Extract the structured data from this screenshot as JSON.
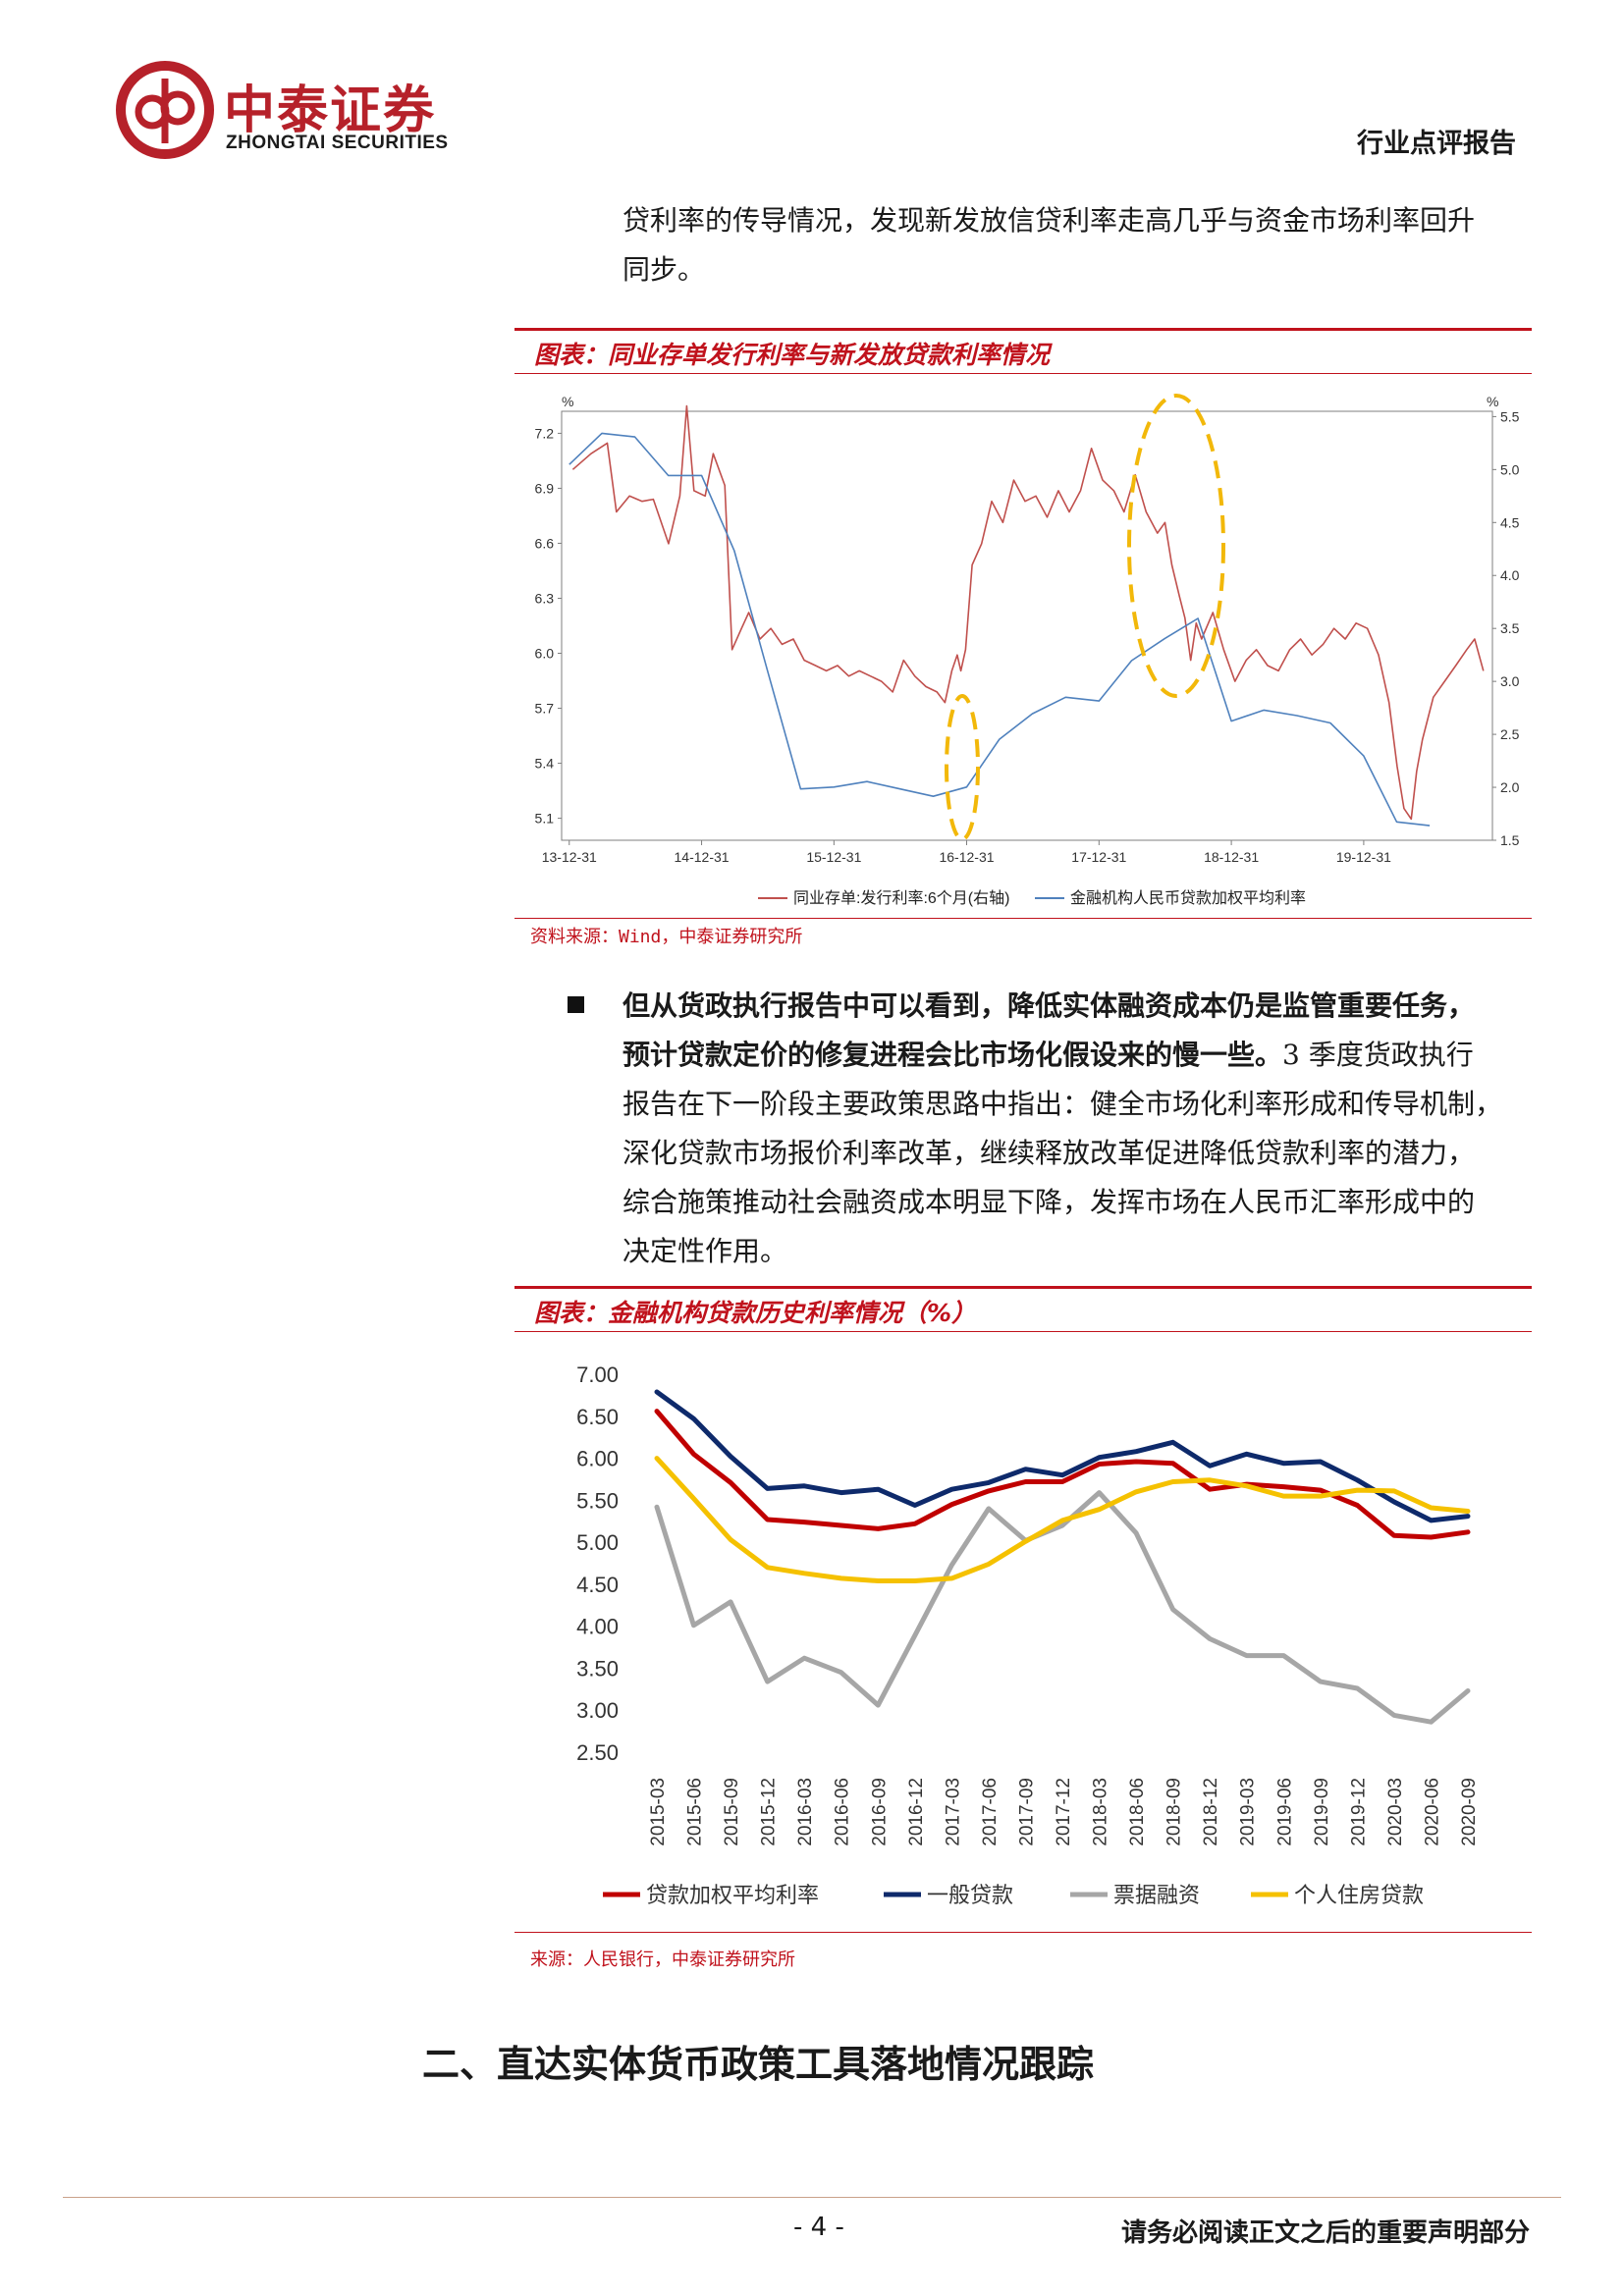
{
  "header": {
    "logo_cn": "中泰证券",
    "logo_en": "ZHONGTAI SECURITIES",
    "report_type": "行业点评报告"
  },
  "para1": {
    "line1": "贷利率的传导情况，发现新发放信贷利率走高几乎与资金市场利率回升",
    "line2": "同步。"
  },
  "figure1": {
    "title": "图表：同业存单发行利率与新发放贷款利率情况",
    "source": "资料来源：Wind，中泰证券研究所",
    "chart_data": {
      "type": "line",
      "left_axis_unit": "%",
      "right_axis_unit": "%",
      "x_ticks": [
        "13-12-31",
        "14-12-31",
        "15-12-31",
        "16-12-31",
        "17-12-31",
        "18-12-31",
        "19-12-31"
      ],
      "left_ticks": [
        "7.2",
        "6.9",
        "6.6",
        "6.3",
        "6.0",
        "5.7",
        "5.4",
        "5.1"
      ],
      "right_ticks": [
        "5.5",
        "5.0",
        "4.5",
        "4.0",
        "3.5",
        "3.0",
        "2.5",
        "2.0",
        "1.5"
      ],
      "ylim_left": [
        4.98,
        7.32
      ],
      "ylim_right": [
        1.5,
        5.55
      ],
      "series": [
        {
          "name": "同业存单:发行利率:6个月(右轴)",
          "axis": "right",
          "color": "#c0504d",
          "x": [
            "2014-01-10",
            "2014-03-01",
            "2014-04-15",
            "2014-05-10",
            "2014-06-15",
            "2014-07-20",
            "2014-08-20",
            "2014-10-01",
            "2014-11-01",
            "2014-11-20",
            "2014-12-10",
            "2015-01-10",
            "2015-02-01",
            "2015-03-05",
            "2015-03-25",
            "2015-04-20",
            "2015-05-10",
            "2015-06-10",
            "2015-07-10",
            "2015-08-10",
            "2015-09-10",
            "2015-10-10",
            "2015-11-10",
            "2015-12-10",
            "2016-01-10",
            "2016-02-10",
            "2016-03-10",
            "2016-04-10",
            "2016-05-10",
            "2016-06-10",
            "2016-07-10",
            "2016-08-10",
            "2016-09-10",
            "2016-10-10",
            "2016-11-01",
            "2016-11-20",
            "2016-12-05",
            "2016-12-15",
            "2016-12-28",
            "2017-01-15",
            "2017-02-10",
            "2017-03-10",
            "2017-04-10",
            "2017-05-10",
            "2017-06-10",
            "2017-07-10",
            "2017-08-10",
            "2017-09-10",
            "2017-10-10",
            "2017-11-10",
            "2017-12-10",
            "2018-01-10",
            "2018-02-10",
            "2018-03-10",
            "2018-04-10",
            "2018-05-10",
            "2018-06-10",
            "2018-07-01",
            "2018-07-20",
            "2018-08-10",
            "2018-08-25",
            "2018-09-10",
            "2018-09-25",
            "2018-10-10",
            "2018-11-10",
            "2018-12-10",
            "2019-01-10",
            "2019-02-10",
            "2019-03-10",
            "2019-04-10",
            "2019-05-10",
            "2019-06-10",
            "2019-07-10",
            "2019-08-10",
            "2019-09-10",
            "2019-10-10",
            "2019-11-10",
            "2019-12-10",
            "2020-01-10",
            "2020-02-10",
            "2020-03-10",
            "2020-04-01",
            "2020-04-20",
            "2020-05-10",
            "2020-05-25",
            "2020-06-10",
            "2020-07-10",
            "2020-08-10",
            "2020-09-10",
            "2020-10-10",
            "2020-11-01",
            "2020-11-25"
          ],
          "values": [
            5.0,
            5.15,
            5.25,
            4.6,
            4.75,
            4.7,
            4.72,
            4.3,
            4.75,
            5.6,
            4.8,
            4.75,
            5.15,
            4.85,
            3.3,
            3.5,
            3.65,
            3.4,
            3.5,
            3.35,
            3.4,
            3.2,
            3.15,
            3.1,
            3.15,
            3.05,
            3.1,
            3.05,
            3.0,
            2.9,
            3.2,
            3.05,
            2.95,
            2.9,
            2.8,
            3.1,
            3.25,
            3.1,
            3.3,
            4.1,
            4.3,
            4.7,
            4.5,
            4.9,
            4.7,
            4.75,
            4.55,
            4.8,
            4.6,
            4.8,
            5.2,
            4.9,
            4.8,
            4.6,
            4.95,
            4.6,
            4.4,
            4.5,
            4.1,
            3.8,
            3.6,
            3.2,
            3.55,
            3.4,
            3.65,
            3.3,
            3.0,
            3.2,
            3.3,
            3.15,
            3.1,
            3.3,
            3.4,
            3.25,
            3.35,
            3.5,
            3.4,
            3.55,
            3.5,
            3.25,
            2.8,
            2.2,
            1.8,
            1.7,
            2.15,
            2.45,
            2.85,
            3.0,
            3.15,
            3.3,
            3.4,
            3.1
          ]
        },
        {
          "name": "金融机构人民币贷款加权平均利率",
          "axis": "left",
          "color": "#4f81bd",
          "x": [
            "2013-12-31",
            "2014-03-31",
            "2014-06-30",
            "2014-09-30",
            "2014-12-31",
            "2015-03-31",
            "2015-06-30",
            "2015-09-30",
            "2015-12-31",
            "2016-03-31",
            "2016-06-30",
            "2016-09-30",
            "2016-12-31",
            "2017-03-31",
            "2017-06-30",
            "2017-09-30",
            "2017-12-31",
            "2018-03-31",
            "2018-06-30",
            "2018-09-30",
            "2018-12-31",
            "2019-03-31",
            "2019-06-30",
            "2019-09-30",
            "2019-12-31",
            "2020-03-31",
            "2020-06-30"
          ],
          "values": [
            7.03,
            7.2,
            7.18,
            6.97,
            6.97,
            6.56,
            5.91,
            5.26,
            5.27,
            5.3,
            5.26,
            5.22,
            5.27,
            5.53,
            5.67,
            5.76,
            5.74,
            5.96,
            6.08,
            6.19,
            5.63,
            5.69,
            5.66,
            5.62,
            5.44,
            5.08,
            5.06
          ]
        }
      ]
    }
  },
  "para2": {
    "bold_line1": "但从货政执行报告中可以看到，降低实体融资成本仍是监管重要任务，",
    "bold_line2_bold": "预计贷款定价的修复进程会比市场化假设来的慢一些。",
    "line2_rest": "3 季度货政执行",
    "line3": "报告在下一阶段主要政策思路中指出：健全市场化利率形成和传导机制，",
    "line4": "深化贷款市场报价利率改革，继续释放改革促进降低贷款利率的潜力，",
    "line5": "综合施策推动社会融资成本明显下降，发挥市场在人民币汇率形成中的",
    "line6": "决定性作用。"
  },
  "figure2": {
    "title": "图表：金融机构贷款历史利率情况（%）",
    "source": "来源：人民银行，中泰证券研究所",
    "chart_data": {
      "type": "line",
      "categories": [
        "2015-03",
        "2015-06",
        "2015-09",
        "2015-12",
        "2016-03",
        "2016-06",
        "2016-09",
        "2016-12",
        "2017-03",
        "2017-06",
        "2017-09",
        "2017-12",
        "2018-03",
        "2018-06",
        "2018-09",
        "2018-12",
        "2019-03",
        "2019-06",
        "2019-09",
        "2019-12",
        "2020-03",
        "2020-06",
        "2020-09"
      ],
      "y_ticks": [
        "7.00",
        "6.50",
        "6.00",
        "5.50",
        "5.00",
        "4.50",
        "4.00",
        "3.50",
        "3.00",
        "2.50"
      ],
      "ylim": [
        2.5,
        7.0
      ],
      "series": [
        {
          "name": "贷款加权平均利率",
          "color": "#c00000",
          "values": [
            6.56,
            6.05,
            5.71,
            5.27,
            5.24,
            5.2,
            5.16,
            5.22,
            5.45,
            5.61,
            5.72,
            5.72,
            5.93,
            5.96,
            5.94,
            5.63,
            5.69,
            5.66,
            5.62,
            5.44,
            5.08,
            5.06,
            5.12
          ]
        },
        {
          "name": "一般贷款",
          "color": "#0e2a6b",
          "values": [
            6.79,
            6.47,
            6.02,
            5.64,
            5.67,
            5.59,
            5.63,
            5.44,
            5.63,
            5.71,
            5.87,
            5.8,
            6.01,
            6.08,
            6.19,
            5.91,
            6.05,
            5.94,
            5.96,
            5.74,
            5.48,
            5.26,
            5.31
          ]
        },
        {
          "name": "票据融资",
          "color": "#a6a6a6",
          "values": [
            5.42,
            4.01,
            4.29,
            3.34,
            3.62,
            3.45,
            3.06,
            3.89,
            4.73,
            5.4,
            5.02,
            5.2,
            5.59,
            5.11,
            4.2,
            3.85,
            3.65,
            3.65,
            3.34,
            3.26,
            2.94,
            2.86,
            3.23
          ]
        },
        {
          "name": "个人住房贷款",
          "color": "#f5c100",
          "values": [
            6.0,
            5.52,
            5.03,
            4.7,
            4.63,
            4.57,
            4.54,
            4.54,
            4.57,
            4.74,
            5.01,
            5.26,
            5.39,
            5.6,
            5.72,
            5.74,
            5.67,
            5.55,
            5.55,
            5.62,
            5.61,
            5.41,
            5.37
          ]
        }
      ]
    }
  },
  "section": {
    "heading": "二、直达实体货币政策工具落地情况跟踪"
  },
  "footer": {
    "page": "- 4 -",
    "disclaimer": "请务必阅读正文之后的重要声明部分"
  }
}
